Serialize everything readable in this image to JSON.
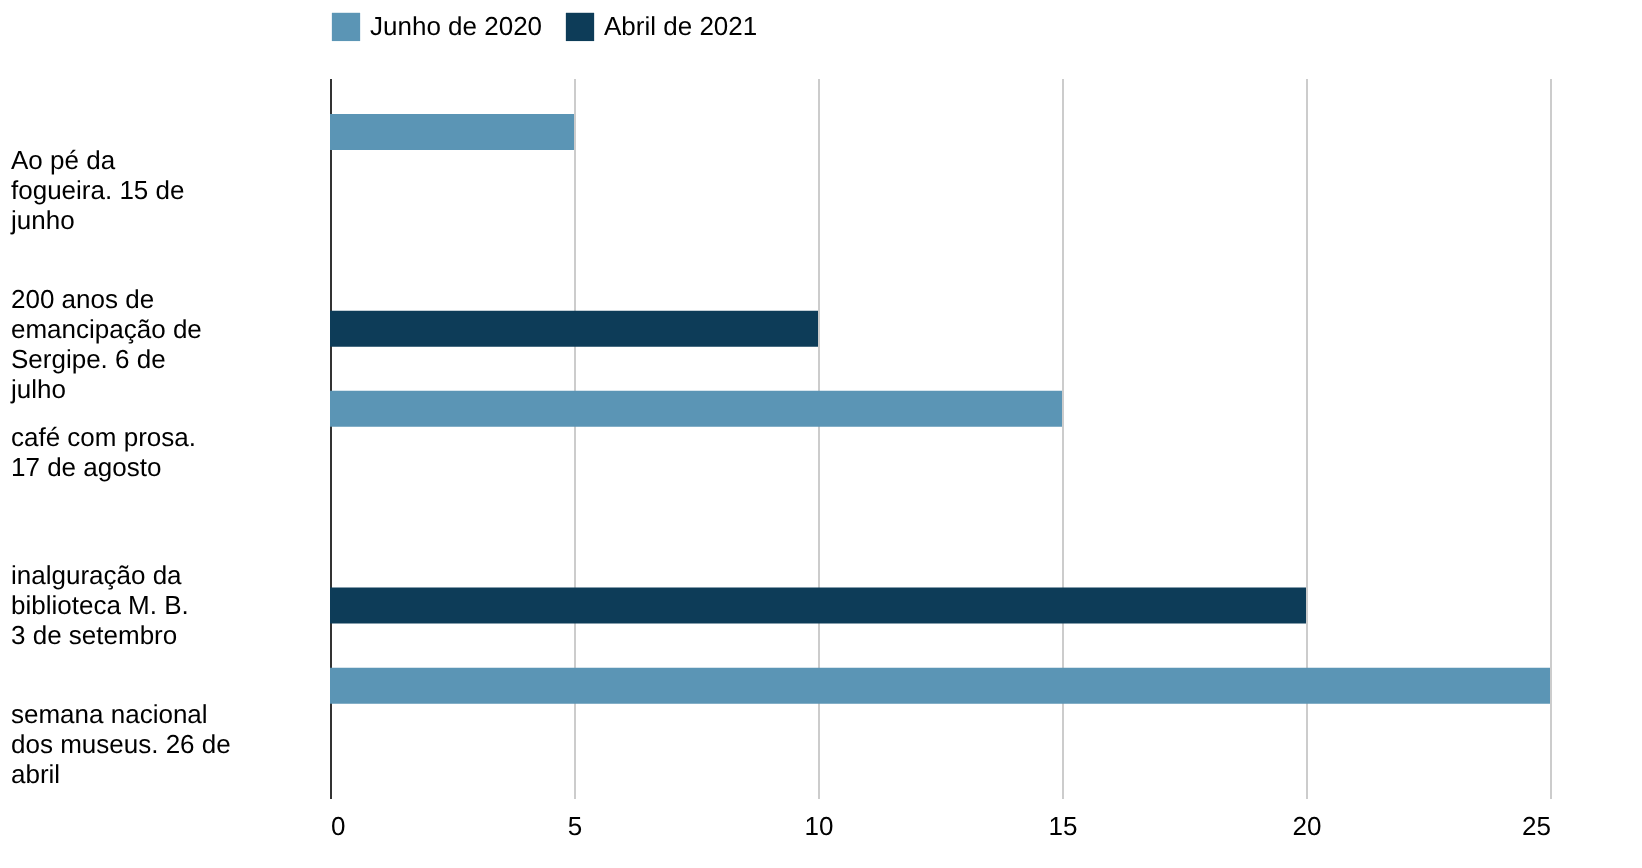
{
  "chart_data": {
    "type": "bar",
    "orientation": "horizontal",
    "categories": [
      "Ao pé da fogueira. 15 de junho",
      "200 anos de emancipação de Sergipe. 6 de julho",
      "café com prosa. 17 de agosto",
      "inalguração da biblioteca M. B. 3 de setembro",
      "semana nacional dos museus. 26 de abril"
    ],
    "series": [
      {
        "name": "Junho de 2020",
        "color": "#5b95b5",
        "values": [
          5,
          null,
          15,
          null,
          25
        ]
      },
      {
        "name": "Abril de 2021",
        "color": "#0d3c58",
        "values": [
          null,
          10,
          null,
          20,
          null
        ]
      }
    ],
    "xlim": [
      0,
      25
    ],
    "xticks": [
      0,
      5,
      10,
      15,
      20,
      25
    ],
    "grid": "x",
    "legend": "top"
  }
}
